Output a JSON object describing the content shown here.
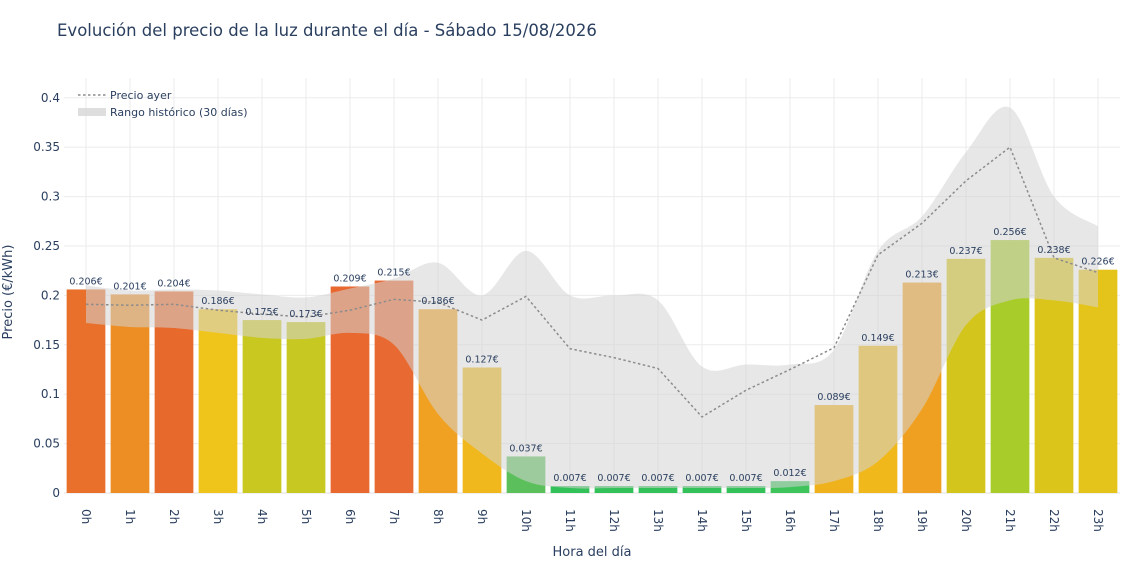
{
  "chart_data": {
    "type": "bar",
    "title": "Evolución del precio de la luz durante el día - Sábado 15/08/2026",
    "xlabel": "Hora del día",
    "ylabel": "Precio (€/kWh)",
    "ylim": [
      0,
      0.42
    ],
    "yticks": [
      "0",
      "0.05",
      "0.1",
      "0.15",
      "0.2",
      "0.25",
      "0.3",
      "0.35",
      "0.4"
    ],
    "ytick_values": [
      0,
      0.05,
      0.1,
      0.15,
      0.2,
      0.25,
      0.3,
      0.35,
      0.4
    ],
    "categories": [
      "0h",
      "1h",
      "2h",
      "3h",
      "4h",
      "5h",
      "6h",
      "7h",
      "8h",
      "9h",
      "10h",
      "11h",
      "12h",
      "13h",
      "14h",
      "15h",
      "16h",
      "17h",
      "18h",
      "19h",
      "20h",
      "21h",
      "22h",
      "23h"
    ],
    "values": [
      0.206,
      0.201,
      0.204,
      0.186,
      0.175,
      0.173,
      0.209,
      0.215,
      0.186,
      0.127,
      0.037,
      0.007,
      0.007,
      0.007,
      0.007,
      0.007,
      0.012,
      0.089,
      0.149,
      0.213,
      0.237,
      0.256,
      0.238,
      0.226
    ],
    "value_labels": [
      "0.206€",
      "0.201€",
      "0.204€",
      "0.186€",
      "0.175€",
      "0.173€",
      "0.209€",
      "0.215€",
      "0.186€",
      "0.127€",
      "0.037€",
      "0.007€",
      "0.007€",
      "0.007€",
      "0.007€",
      "0.007€",
      "0.012€",
      "0.089€",
      "0.149€",
      "0.213€",
      "0.237€",
      "0.256€",
      "0.238€",
      "0.226€"
    ],
    "bar_colors": [
      "#e8702a",
      "#ed8e24",
      "#e8692c",
      "#f0c51b",
      "#c9c820",
      "#c8c823",
      "#e96830",
      "#e86931",
      "#f1a122",
      "#f0b81c",
      "#5bc05b",
      "#33c15a",
      "#33c15a",
      "#33c15a",
      "#33c15a",
      "#33c15a",
      "#3fc35b",
      "#f0b21c",
      "#f0b81a",
      "#f0a020",
      "#d4c51c",
      "#a8cc2a",
      "#dbc51b",
      "#e4c41a"
    ],
    "yesterday": {
      "name": "Precio ayer",
      "color": "#8c8c8c",
      "values": [
        0.191,
        0.19,
        0.191,
        0.185,
        0.181,
        0.178,
        0.185,
        0.196,
        0.193,
        0.175,
        0.199,
        0.146,
        0.137,
        0.126,
        0.077,
        0.104,
        0.125,
        0.147,
        0.241,
        0.273,
        0.316,
        0.35,
        0.238,
        0.223
      ]
    },
    "historical_range": {
      "name": "Rango histórico (30 días)",
      "color": "#d3d3d3",
      "upper": [
        0.21,
        0.205,
        0.206,
        0.205,
        0.201,
        0.198,
        0.207,
        0.217,
        0.233,
        0.2,
        0.245,
        0.2,
        0.2,
        0.195,
        0.128,
        0.13,
        0.13,
        0.145,
        0.245,
        0.28,
        0.345,
        0.39,
        0.3,
        0.27
      ],
      "lower": [
        0.172,
        0.168,
        0.167,
        0.162,
        0.157,
        0.156,
        0.162,
        0.15,
        0.08,
        0.04,
        0.012,
        0.005,
        0.005,
        0.005,
        0.005,
        0.005,
        0.006,
        0.012,
        0.032,
        0.085,
        0.17,
        0.195,
        0.195,
        0.188
      ]
    },
    "legend_position": "top-left",
    "grid": true
  }
}
